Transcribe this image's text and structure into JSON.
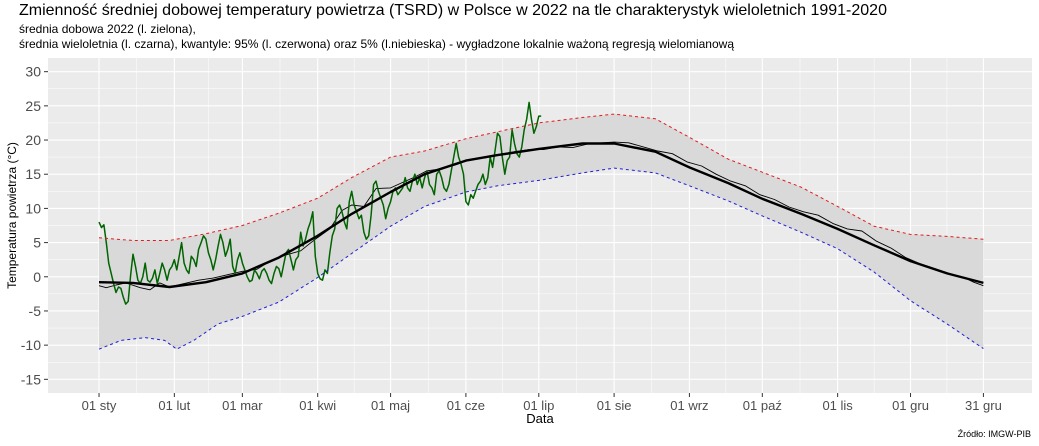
{
  "header": {
    "title": "Zmienność średniej dobowej temperatury powietrza (TSRD) w Polsce w 2022 na tle charakterystyk wieloletnich 1991-2020",
    "subtitle1": "średnia dobowa 2022 (l. zielona),",
    "subtitle2": "średnia wieloletnia (l. czarna), kwantyle: 95% (l. czerwona) oraz 5% (l.niebieska) - wygładzone lokalnie ważoną regresją wielomianową"
  },
  "source": "Źródło: IMGW-PIB",
  "colors": {
    "panel": "#ebebeb",
    "grid": "#ffffff",
    "band": "#d9d9d9",
    "daily2022": "#006400",
    "mean": "#000000",
    "q95": "#e31a1c",
    "q05": "#1f1fd6"
  },
  "chart_data": {
    "type": "line",
    "xlabel": "Data",
    "ylabel": "Temperatura powietrza (°C)",
    "xlim": [
      -20,
      385
    ],
    "ylim": [
      -17,
      32
    ],
    "grid": true,
    "x_ticks": [
      {
        "day": 1,
        "label": "01 sty"
      },
      {
        "day": 32,
        "label": "01 lut"
      },
      {
        "day": 60,
        "label": "01 mar"
      },
      {
        "day": 91,
        "label": "01 kwi"
      },
      {
        "day": 121,
        "label": "01 maj"
      },
      {
        "day": 152,
        "label": "01 cze"
      },
      {
        "day": 182,
        "label": "01 lip"
      },
      {
        "day": 213,
        "label": "01 sie"
      },
      {
        "day": 244,
        "label": "01 wrz"
      },
      {
        "day": 274,
        "label": "01 paź"
      },
      {
        "day": 305,
        "label": "01 lis"
      },
      {
        "day": 335,
        "label": "01 gru"
      },
      {
        "day": 365,
        "label": "31 gru"
      }
    ],
    "y_ticks": [
      -15,
      -10,
      -5,
      0,
      5,
      10,
      15,
      20,
      25,
      30
    ],
    "series": [
      {
        "key": "q95",
        "style": "dashed",
        "x": [
          1,
          15,
          30,
          45,
          60,
          75,
          91,
          105,
          121,
          135,
          152,
          165,
          182,
          200,
          213,
          230,
          244,
          260,
          274,
          290,
          305,
          320,
          335,
          350,
          365
        ],
        "values": [
          5.7,
          5.3,
          5.3,
          6.3,
          7.5,
          9.3,
          11.5,
          14.5,
          17.5,
          18.4,
          20.2,
          21.2,
          22.5,
          23.3,
          23.8,
          23.1,
          20.4,
          17.2,
          15.3,
          13.1,
          10.3,
          7.4,
          6.2,
          5.9,
          5.5
        ]
      },
      {
        "key": "q05",
        "style": "dashed",
        "x": [
          1,
          10,
          20,
          28,
          33,
          40,
          50,
          60,
          75,
          91,
          105,
          121,
          135,
          152,
          165,
          182,
          200,
          213,
          230,
          244,
          260,
          274,
          290,
          305,
          320,
          335,
          350,
          365
        ],
        "values": [
          -10.6,
          -9.3,
          -8.9,
          -9.3,
          -10.6,
          -9.3,
          -6.9,
          -5.8,
          -3.7,
          -0.1,
          3.4,
          7.4,
          10.3,
          12.4,
          13.3,
          14.1,
          15.2,
          15.9,
          15.2,
          13.3,
          11.1,
          8.9,
          6.5,
          4.1,
          0.7,
          -3.5,
          -6.9,
          -10.5
        ]
      },
      {
        "key": "mean_smooth",
        "style": "thick",
        "x": [
          1,
          15,
          30,
          45,
          60,
          75,
          91,
          105,
          121,
          135,
          152,
          165,
          182,
          200,
          213,
          230,
          244,
          260,
          274,
          290,
          305,
          320,
          335,
          350,
          365
        ],
        "values": [
          -0.8,
          -0.9,
          -1.5,
          -0.8,
          0.5,
          2.8,
          6.0,
          9.2,
          12.4,
          15.0,
          17.0,
          17.8,
          18.7,
          19.5,
          19.5,
          18.3,
          16.0,
          13.7,
          11.4,
          9.2,
          7.0,
          4.6,
          2.3,
          0.5,
          -0.9
        ]
      },
      {
        "key": "mean_daily",
        "style": "thin",
        "x": [
          1,
          4,
          8,
          12,
          18,
          22,
          26,
          30,
          36,
          42,
          48,
          54,
          60,
          66,
          72,
          78,
          84,
          90,
          96,
          101,
          105,
          110,
          115,
          121,
          126,
          131,
          136,
          142,
          148,
          154,
          160,
          166,
          172,
          178,
          184,
          190,
          196,
          202,
          208,
          213,
          219,
          225,
          231,
          237,
          243,
          249,
          255,
          261,
          267,
          273,
          279,
          285,
          291,
          297,
          303,
          309,
          315,
          321,
          327,
          333,
          339,
          345,
          351,
          357,
          361,
          365
        ],
        "values": [
          -1.3,
          -1.6,
          -1.2,
          -0.9,
          -1.6,
          -1.9,
          -0.9,
          -1.5,
          -1.0,
          -0.5,
          -0.2,
          0.3,
          0.8,
          1.1,
          2.4,
          3.2,
          3.8,
          5.5,
          7.0,
          9.7,
          10.5,
          10.3,
          12.9,
          13.0,
          13.8,
          14.6,
          15.5,
          15.8,
          16.4,
          17.2,
          17.4,
          17.9,
          18.3,
          18.6,
          18.6,
          19.0,
          18.9,
          19.4,
          19.6,
          19.7,
          19.6,
          19.0,
          18.4,
          18.0,
          16.8,
          16.2,
          15.0,
          14.0,
          13.3,
          12.0,
          11.3,
          10.2,
          9.5,
          9.0,
          7.8,
          7.0,
          6.7,
          5.2,
          4.2,
          2.8,
          1.9,
          1.2,
          0.5,
          -0.1,
          -0.8,
          -1.3
        ]
      },
      {
        "key": "daily2022",
        "style": "thin",
        "x": [
          1,
          2,
          3,
          4,
          5,
          6,
          7,
          8,
          9,
          10,
          11,
          12,
          13,
          14,
          15,
          16,
          17,
          18,
          19,
          20,
          21,
          22,
          23,
          24,
          25,
          26,
          27,
          28,
          29,
          30,
          31,
          32,
          33,
          34,
          35,
          36,
          37,
          38,
          39,
          40,
          41,
          42,
          43,
          44,
          45,
          46,
          47,
          48,
          49,
          50,
          51,
          52,
          53,
          54,
          55,
          56,
          57,
          58,
          59,
          60,
          61,
          62,
          63,
          64,
          65,
          66,
          67,
          68,
          69,
          70,
          71,
          72,
          73,
          74,
          75,
          76,
          77,
          78,
          79,
          80,
          81,
          82,
          83,
          84,
          85,
          86,
          87,
          88,
          89,
          90,
          91,
          92,
          93,
          94,
          95,
          96,
          97,
          98,
          99,
          100,
          101,
          102,
          103,
          104,
          105,
          106,
          107,
          108,
          109,
          110,
          111,
          112,
          113,
          114,
          115,
          116,
          117,
          118,
          119,
          120,
          121,
          122,
          123,
          124,
          125,
          126,
          127,
          128,
          129,
          130,
          131,
          132,
          133,
          134,
          135,
          136,
          137,
          138,
          139,
          140,
          141,
          142,
          143,
          144,
          145,
          146,
          147,
          148,
          149,
          150,
          151,
          152,
          153,
          154,
          155,
          156,
          157,
          158,
          159,
          160,
          161,
          162,
          163,
          164,
          165,
          166,
          167,
          168,
          169,
          170,
          171,
          172,
          173,
          174,
          175,
          176,
          177,
          178,
          179,
          180,
          181,
          182,
          183
        ],
        "values": [
          8.0,
          7.2,
          7.6,
          5.0,
          2.0,
          0.5,
          -1.0,
          -2.3,
          -1.5,
          -1.7,
          -3.0,
          -4.0,
          -3.6,
          0.2,
          3.3,
          1.5,
          -0.5,
          -1.0,
          0.0,
          2.0,
          -0.5,
          -0.8,
          -0.2,
          1.0,
          -1.0,
          0.5,
          2.0,
          1.0,
          -0.5,
          1.0,
          1.5,
          2.5,
          1.0,
          3.0,
          5.0,
          2.0,
          1.0,
          0.5,
          3.0,
          2.5,
          1.5,
          4.0,
          5.0,
          6.0,
          5.5,
          3.5,
          2.5,
          1.0,
          2.5,
          4.5,
          6.2,
          5.0,
          3.0,
          4.0,
          5.5,
          1.5,
          0.5,
          2.5,
          3.5,
          2.0,
          1.0,
          0.0,
          -0.7,
          -0.5,
          1.0,
          0.5,
          -0.3,
          0.8,
          1.2,
          0.5,
          -0.5,
          -1.0,
          0.5,
          1.5,
          1.2,
          0.0,
          1.8,
          3.5,
          4.0,
          2.5,
          1.0,
          2.5,
          3.0,
          6.5,
          4.5,
          5.5,
          7.0,
          8.0,
          9.5,
          3.0,
          0.5,
          -0.3,
          -0.5,
          1.0,
          0.5,
          3.5,
          6.0,
          7.0,
          10.0,
          10.5,
          9.5,
          8.0,
          7.0,
          11.0,
          12.5,
          10.5,
          9.5,
          8.5,
          9.0,
          6.5,
          5.5,
          6.0,
          9.0,
          13.5,
          14.0,
          12.5,
          11.5,
          10.5,
          8.5,
          10.0,
          11.0,
          12.5,
          13.0,
          12.0,
          12.5,
          13.0,
          14.5,
          13.0,
          12.5,
          14.0,
          15.0,
          13.5,
          14.5,
          13.0,
          14.5,
          15.5,
          13.5,
          13.0,
          12.0,
          15.0,
          15.5,
          14.5,
          13.0,
          12.5,
          13.5,
          15.5,
          17.5,
          19.5,
          17.5,
          16.5,
          15.0,
          11.0,
          10.5,
          12.0,
          11.5,
          12.5,
          13.5,
          14.0,
          15.0,
          13.5,
          14.5,
          17.5,
          16.0,
          18.5,
          21.0,
          20.5,
          17.5,
          15.0,
          17.0,
          17.5,
          21.5,
          19.5,
          18.0,
          17.5,
          19.0,
          21.5,
          23.0,
          25.5,
          23.0,
          21.0,
          22.0,
          23.5,
          23.5
        ]
      }
    ]
  }
}
